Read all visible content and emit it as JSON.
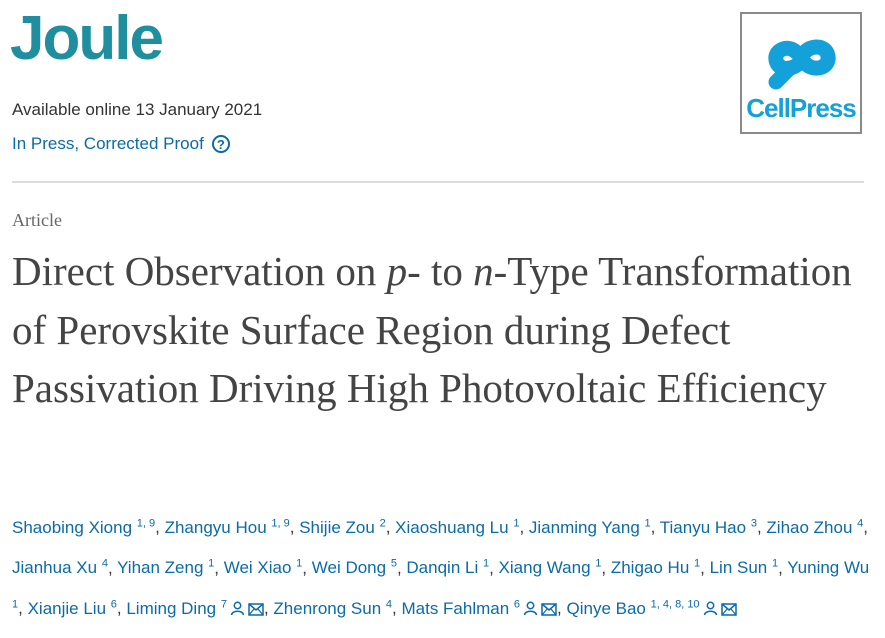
{
  "header": {
    "journal": "Joule",
    "available": "Available online 13 January 2021",
    "status": "In Press, Corrected Proof",
    "help_glyph": "?",
    "publisher_logo": "CellPress",
    "logo_color": "#14a0d8"
  },
  "article": {
    "type": "Article",
    "title_parts": [
      "Direct Observation on ",
      "p",
      "- to ",
      "n",
      "-Type Transformation of Perovskite Surface Region during Defect Passivation Driving High Photovoltaic Efficiency"
    ]
  },
  "authors": [
    {
      "name": "Shaobing Xiong",
      "sup": "1, 9"
    },
    {
      "name": "Zhangyu Hou",
      "sup": "1, 9"
    },
    {
      "name": "Shijie Zou",
      "sup": "2"
    },
    {
      "name": "Xiaoshuang Lu",
      "sup": "1"
    },
    {
      "name": "Jianming Yang",
      "sup": "1"
    },
    {
      "name": "Tianyu Hao",
      "sup": "3"
    },
    {
      "name": "Zihao Zhou",
      "sup": "4"
    },
    {
      "name": "Jianhua Xu",
      "sup": "4"
    },
    {
      "name": "Yihan Zeng",
      "sup": "1"
    },
    {
      "name": "Wei Xiao",
      "sup": "1"
    },
    {
      "name": "Wei Dong",
      "sup": "5"
    },
    {
      "name": "Danqin Li",
      "sup": "1"
    },
    {
      "name": "Xiang Wang",
      "sup": "1"
    },
    {
      "name": "Zhigao Hu",
      "sup": "1"
    },
    {
      "name": "Lin Sun",
      "sup": "1"
    },
    {
      "name": "Yuning Wu",
      "sup": "1"
    },
    {
      "name": "Xianjie Liu",
      "sup": "6"
    },
    {
      "name": "Liming Ding",
      "sup": "7"
    },
    {
      "name": "Zhenrong Sun",
      "sup": "4"
    },
    {
      "name": "Mats Fahlman",
      "sup": "6"
    },
    {
      "name": "Qinye Bao",
      "sup": "1, 4, 8, 10"
    }
  ]
}
